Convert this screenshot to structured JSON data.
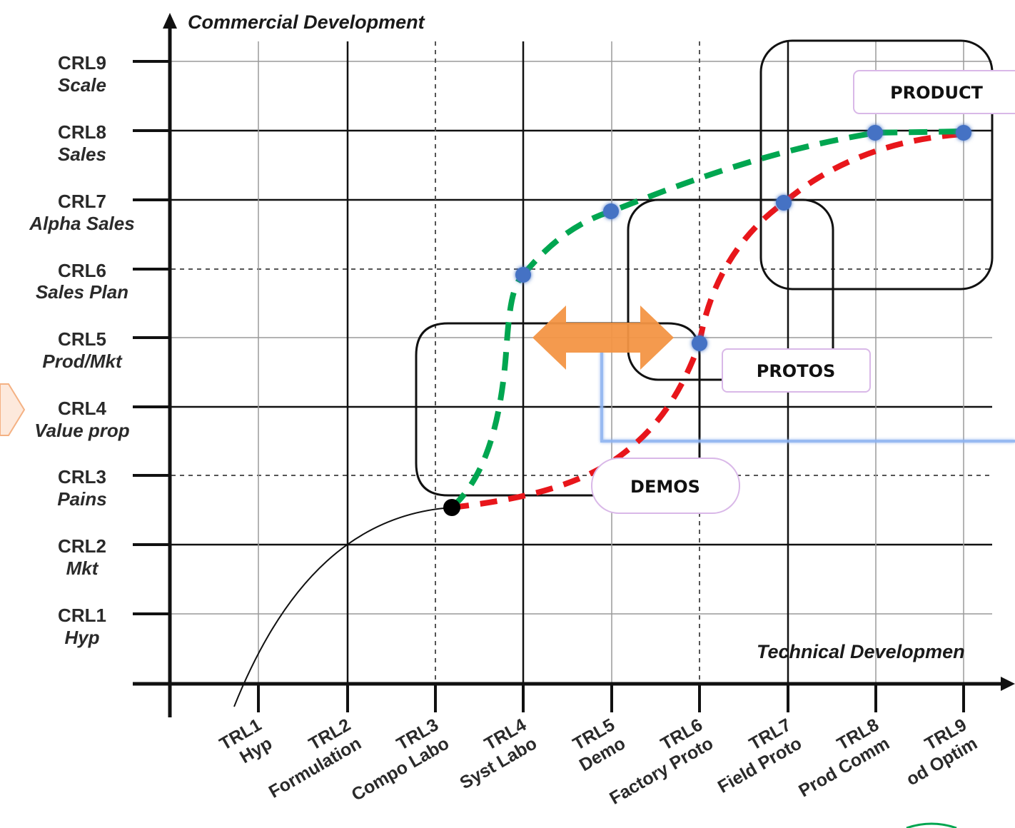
{
  "axes": {
    "y_title": "Commercial Development",
    "x_title": "Technical Developmen"
  },
  "crl_levels": [
    {
      "code": "CRL1",
      "name": "Hyp"
    },
    {
      "code": "CRL2",
      "name": "Mkt"
    },
    {
      "code": "CRL3",
      "name": "Pains"
    },
    {
      "code": "CRL4",
      "name": "Value prop"
    },
    {
      "code": "CRL5",
      "name": "Prod/Mkt"
    },
    {
      "code": "CRL6",
      "name": "Sales Plan"
    },
    {
      "code": "CRL7",
      "name": "Alpha Sales"
    },
    {
      "code": "CRL8",
      "name": "Sales"
    },
    {
      "code": "CRL9",
      "name": "Scale"
    }
  ],
  "trl_levels": [
    {
      "code": "TRL1",
      "name": "Hyp"
    },
    {
      "code": "TRL2",
      "name": "Formulation"
    },
    {
      "code": "TRL3",
      "name": "Compo Labo"
    },
    {
      "code": "TRL4",
      "name": "Syst Labo"
    },
    {
      "code": "TRL5",
      "name": "Demo"
    },
    {
      "code": "TRL6",
      "name": "Factory Proto"
    },
    {
      "code": "TRL7",
      "name": "Field Proto"
    },
    {
      "code": "TRL8",
      "name": "Prod Comm"
    },
    {
      "code": "TRL9",
      "name": "od Optim"
    }
  ],
  "stages": {
    "demos": "DEMOS",
    "protos": "PROTOS",
    "product": "PRODUCT"
  },
  "colors": {
    "commercial_path": "#00a650",
    "technical_path": "#e8161b",
    "milestone": "#4472c4",
    "arrow": "#f39545",
    "highlight_frame": "#8db3f0",
    "label_border": "#d9b8e8"
  }
}
